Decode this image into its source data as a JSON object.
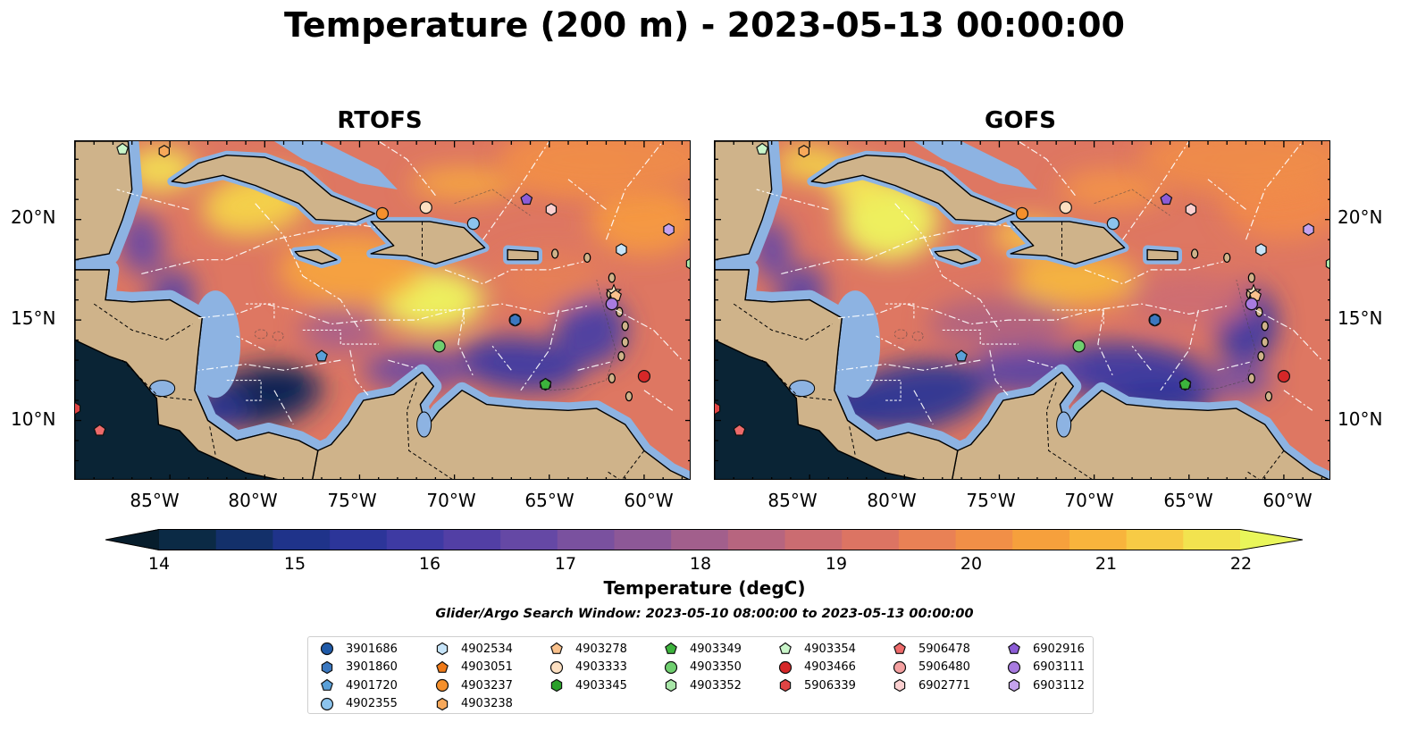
{
  "title": "Temperature (200 m) - 2023-05-13 00:00:00",
  "panels": [
    {
      "title": "RTOFS"
    },
    {
      "title": "GOFS"
    }
  ],
  "x_ticks": [
    "85°W",
    "80°W",
    "75°W",
    "70°W",
    "65°W",
    "60°W"
  ],
  "y_ticks": [
    "20°N",
    "15°N",
    "10°N"
  ],
  "colorbar": {
    "label": "Temperature (degC)",
    "ticks": [
      "14",
      "15",
      "16",
      "17",
      "18",
      "19",
      "20",
      "21",
      "22"
    ],
    "colors": [
      "#0b2a45",
      "#13306a",
      "#1f338a",
      "#2c3599",
      "#3e3aa3",
      "#523fa5",
      "#6548a5",
      "#7a519f",
      "#8d5897",
      "#a25f8c",
      "#b7657f",
      "#cb6c71",
      "#dc7463",
      "#e98155",
      "#f18f47",
      "#f6a03c",
      "#f8b43c",
      "#f7cb45",
      "#f2e34f"
    ],
    "over_color": "#e9f65a",
    "under_color": "#071d2c"
  },
  "subtitle": "Glider/Argo Search Window: 2023-05-10 08:00:00 to 2023-05-13 00:00:00",
  "chart_data": {
    "type": "map",
    "x_axis": "longitude",
    "y_axis": "latitude",
    "xlim": [
      -90,
      -57.5
    ],
    "ylim": [
      7,
      23.9
    ],
    "variable": "Temperature (200 m)",
    "units": "degC",
    "color_range": [
      14,
      22
    ],
    "floats": [
      {
        "id": "3901686",
        "marker": "circle",
        "color": "#1f5aa8",
        "lon": -66.8,
        "lat": 15.0
      },
      {
        "id": "3901860",
        "marker": "hexagon",
        "color": "#3b78c0",
        "lon": -66.8,
        "lat": 15.0
      },
      {
        "id": "4901720",
        "marker": "pentagon",
        "color": "#5aa0d8",
        "lon": -77.0,
        "lat": 13.2
      },
      {
        "id": "4902355",
        "marker": "circle",
        "color": "#8cc4ee",
        "lon": -69.0,
        "lat": 19.8
      },
      {
        "id": "4902534",
        "marker": "hexagon",
        "color": "#c6e4f9",
        "lon": -61.2,
        "lat": 18.5
      },
      {
        "id": "4903051",
        "marker": "pentagon",
        "color": "#f07a18",
        "lon": -73.8,
        "lat": 20.3
      },
      {
        "id": "4903237",
        "marker": "circle",
        "color": "#f5902c",
        "lon": -73.8,
        "lat": 20.3
      },
      {
        "id": "4903238",
        "marker": "hexagon",
        "color": "#f7a85a",
        "lon": -85.3,
        "lat": 23.4
      },
      {
        "id": "4903278",
        "marker": "pentagon",
        "color": "#f9c18c",
        "lon": -61.5,
        "lat": 16.2
      },
      {
        "id": "4903333",
        "marker": "circle",
        "color": "#fde0c2",
        "lon": -71.5,
        "lat": 20.6
      },
      {
        "id": "4903345",
        "marker": "hexagon",
        "color": "#2aa02a",
        "lon": -65.2,
        "lat": 11.8
      },
      {
        "id": "4903349",
        "marker": "pentagon",
        "color": "#3cb33c",
        "lon": -65.2,
        "lat": 11.8
      },
      {
        "id": "4903350",
        "marker": "circle",
        "color": "#6fcf6f",
        "lon": -70.8,
        "lat": 13.7
      },
      {
        "id": "4903352",
        "marker": "hexagon",
        "color": "#a8e6a8",
        "lon": -57.5,
        "lat": 17.8
      },
      {
        "id": "4903354",
        "marker": "pentagon",
        "color": "#c9f5c9",
        "lon": -87.5,
        "lat": 23.5
      },
      {
        "id": "4903466",
        "marker": "circle",
        "color": "#d62728",
        "lon": -60.0,
        "lat": 12.2
      },
      {
        "id": "5906339",
        "marker": "hexagon",
        "color": "#e04444",
        "lon": -90.0,
        "lat": 10.6
      },
      {
        "id": "5906478",
        "marker": "pentagon",
        "color": "#ee6a6a",
        "lon": -88.7,
        "lat": 9.5
      },
      {
        "id": "5906480",
        "marker": "circle",
        "color": "#f4a0a0",
        "lon": -61.7,
        "lat": 15.8
      },
      {
        "id": "6902771",
        "marker": "hexagon",
        "color": "#fbd0d0",
        "lon": -64.9,
        "lat": 20.5
      },
      {
        "id": "6902916",
        "marker": "pentagon",
        "color": "#8c5cd6",
        "lon": -66.2,
        "lat": 21.0
      },
      {
        "id": "6903111",
        "marker": "circle",
        "color": "#a87be0",
        "lon": -61.7,
        "lat": 15.8
      },
      {
        "id": "6903112",
        "marker": "hexagon",
        "color": "#c5a3ee",
        "lon": -58.7,
        "lat": 19.5
      }
    ]
  }
}
